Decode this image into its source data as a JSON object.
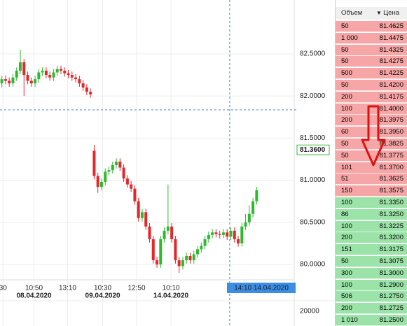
{
  "chart_data": {
    "type": "candlestick",
    "open": [
      82.15,
      82.2,
      82.18,
      82.15,
      82.22,
      82.3,
      82.4,
      82.25,
      82.18,
      82.15,
      82.2,
      82.28,
      82.3,
      82.25,
      82.22,
      82.28,
      82.32,
      82.3,
      82.27,
      82.25,
      82.22,
      82.2,
      82.15,
      82.1,
      82.05,
      81.35,
      81.05,
      80.92,
      80.98,
      81.1,
      81.12,
      81.18,
      81.22,
      81.15,
      81.02,
      80.95,
      80.9,
      80.75,
      80.55,
      80.62,
      80.45,
      80.3,
      80.05,
      80.0,
      80.3,
      80.4,
      80.45,
      80.3,
      80.05,
      79.98,
      80.05,
      80.1,
      80.05,
      80.12,
      80.18,
      80.22,
      80.3,
      80.35,
      80.38,
      80.36,
      80.35,
      80.38,
      80.33,
      80.4,
      80.3,
      80.25,
      80.45,
      80.5,
      80.6,
      80.75
    ],
    "high": [
      82.24,
      82.24,
      82.22,
      82.26,
      82.34,
      82.55,
      82.44,
      82.29,
      82.22,
      82.24,
      82.32,
      82.34,
      82.34,
      82.29,
      82.32,
      82.36,
      82.36,
      82.34,
      82.31,
      82.29,
      82.26,
      82.24,
      82.19,
      82.14,
      82.09,
      81.42,
      81.09,
      81.02,
      81.14,
      81.16,
      81.22,
      81.26,
      81.26,
      81.19,
      81.06,
      80.99,
      80.94,
      80.79,
      80.66,
      80.66,
      80.49,
      80.34,
      80.09,
      80.34,
      80.44,
      80.95,
      80.49,
      80.34,
      80.09,
      80.09,
      80.14,
      80.14,
      80.16,
      80.22,
      80.26,
      80.34,
      80.39,
      80.42,
      80.42,
      80.4,
      80.42,
      80.42,
      80.44,
      80.44,
      80.34,
      80.49,
      80.6,
      80.7,
      80.79,
      80.92
    ],
    "low": [
      82.1,
      82.14,
      82.11,
      82.11,
      82.18,
      82.26,
      82.0,
      82.14,
      82.11,
      82.11,
      82.16,
      82.24,
      82.21,
      82.18,
      82.18,
      82.24,
      82.26,
      82.23,
      82.21,
      82.18,
      82.16,
      82.11,
      82.06,
      82.01,
      81.98,
      81.01,
      80.85,
      80.88,
      80.94,
      81.06,
      81.08,
      81.14,
      81.11,
      80.98,
      80.91,
      80.86,
      80.71,
      80.51,
      80.51,
      80.41,
      80.26,
      80.01,
      79.96,
      79.96,
      80.26,
      80.36,
      80.26,
      80.01,
      79.9,
      79.94,
      80.01,
      80.01,
      80.01,
      80.08,
      80.14,
      80.18,
      80.26,
      80.31,
      80.32,
      80.31,
      80.31,
      80.29,
      80.29,
      80.26,
      80.21,
      80.21,
      80.41,
      80.46,
      80.56,
      80.71
    ],
    "close": [
      82.2,
      82.18,
      82.15,
      82.22,
      82.3,
      82.4,
      82.25,
      82.18,
      82.15,
      82.2,
      82.28,
      82.3,
      82.25,
      82.22,
      82.28,
      82.32,
      82.3,
      82.27,
      82.25,
      82.22,
      82.2,
      82.15,
      82.1,
      82.05,
      82.02,
      81.05,
      80.92,
      80.98,
      81.1,
      81.12,
      81.18,
      81.22,
      81.15,
      81.02,
      80.95,
      80.9,
      80.75,
      80.55,
      80.62,
      80.45,
      80.3,
      80.05,
      80.0,
      80.3,
      80.4,
      80.45,
      80.3,
      80.05,
      79.98,
      80.05,
      80.1,
      80.05,
      80.12,
      80.18,
      80.22,
      80.3,
      80.35,
      80.38,
      80.36,
      80.35,
      80.38,
      80.33,
      80.4,
      80.3,
      80.25,
      80.45,
      80.5,
      80.6,
      80.75,
      80.88
    ],
    "up_color": "#2dbb2d",
    "down_color": "#e5262b",
    "ylim": [
      79.817,
      83.14
    ],
    "yticks": [
      {
        "value": 80,
        "label": "80.0000"
      },
      {
        "value": 80.5,
        "label": "80.5000"
      },
      {
        "value": 81,
        "label": "81.0000"
      },
      {
        "value": 81.5,
        "label": "81.5000"
      },
      {
        "value": 82,
        "label": "82.0000"
      },
      {
        "value": 82.5,
        "label": "82.5000"
      }
    ],
    "xlim": [
      -0.5,
      79.17
    ],
    "xticks": [
      {
        "value": 0.3,
        "label": "30"
      },
      {
        "value": 8.7,
        "label": "10:50"
      },
      {
        "value": 17.8,
        "label": "13:10"
      },
      {
        "value": 27.3,
        "label": "10:30"
      },
      {
        "value": 36.5,
        "label": "12:50"
      },
      {
        "value": 45.8,
        "label": "10:10"
      }
    ],
    "date_ticks": [
      {
        "value": 8.7,
        "label": "08.04.2020"
      },
      {
        "value": 27.3,
        "label": "09.04.2020"
      },
      {
        "value": 45.8,
        "label": "14.04.2020"
      }
    ],
    "grid": true,
    "last_price": {
      "value": 81.36,
      "label": "81.3600"
    },
    "level_line": 81.836,
    "crosshair": {
      "x": 61.7,
      "label": "14:10 14.04.2020"
    },
    "volume_tick": "20000"
  },
  "order_book": {
    "headers": [
      "Объем",
      "Цена"
    ],
    "asks": [
      [
        "50",
        "81.4625"
      ],
      [
        "1 000",
        "81.4475"
      ],
      [
        "50",
        "81.4325"
      ],
      [
        "50",
        "81.4275"
      ],
      [
        "500",
        "81.4225"
      ],
      [
        "50",
        "81.4200"
      ],
      [
        "200",
        "81.4175"
      ],
      [
        "100",
        "81.4000"
      ],
      [
        "200",
        "81.3975"
      ],
      [
        "60",
        "81.3950"
      ],
      [
        "50",
        "81.3825"
      ],
      [
        "50",
        "81.3775"
      ],
      [
        "101",
        "81.3700"
      ],
      [
        "51",
        "81.3625"
      ],
      [
        "150",
        "81.3575"
      ]
    ],
    "bids": [
      [
        "100",
        "81.3350"
      ],
      [
        "86",
        "81.3250"
      ],
      [
        "100",
        "81.3225"
      ],
      [
        "200",
        "81.3200"
      ],
      [
        "151",
        "81.3175"
      ],
      [
        "50",
        "81.3075"
      ],
      [
        "300",
        "81.3000"
      ],
      [
        "100",
        "81.2900"
      ],
      [
        "506",
        "81.2750"
      ],
      [
        "200",
        "81.2725"
      ],
      [
        "1 010",
        "81.2500"
      ]
    ]
  }
}
